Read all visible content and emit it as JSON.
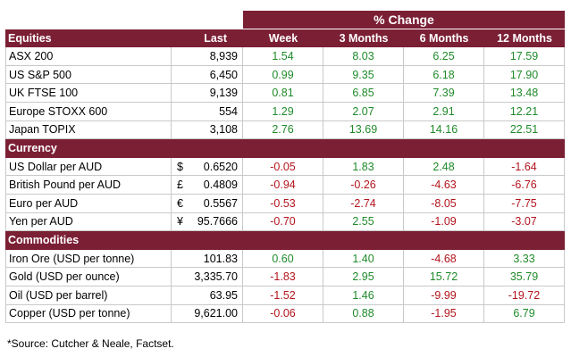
{
  "pct_change": "% Change",
  "headers": {
    "name": "Equities",
    "last": "Last",
    "week": "Week",
    "m3": "3 Months",
    "m6": "6 Months",
    "m12": "12 Months"
  },
  "equities": [
    {
      "name": "ASX 200",
      "last": "8,939",
      "week": "1.54",
      "m3": "8.03",
      "m6": "6.25",
      "m12": "17.59"
    },
    {
      "name": "US S&P 500",
      "last": "6,450",
      "week": "0.99",
      "m3": "9.35",
      "m6": "6.18",
      "m12": "17.90"
    },
    {
      "name": "UK FTSE 100",
      "last": "9,139",
      "week": "0.81",
      "m3": "6.85",
      "m6": "7.39",
      "m12": "13.48"
    },
    {
      "name": "Europe STOXX 600",
      "last": "554",
      "week": "1.29",
      "m3": "2.07",
      "m6": "2.91",
      "m12": "12.21"
    },
    {
      "name": "Japan TOPIX",
      "last": "3,108",
      "week": "2.76",
      "m3": "13.69",
      "m6": "14.16",
      "m12": "22.51"
    }
  ],
  "currency_title": "Currency",
  "currency": [
    {
      "name": "US Dollar per AUD",
      "sym": "$",
      "last": "0.6520",
      "week": "-0.05",
      "m3": "1.83",
      "m6": "2.48",
      "m12": "-1.64"
    },
    {
      "name": "British Pound per AUD",
      "sym": "£",
      "last": "0.4809",
      "week": "-0.94",
      "m3": "-0.26",
      "m6": "-4.63",
      "m12": "-6.76"
    },
    {
      "name": "Euro per AUD",
      "sym": "€",
      "last": "0.5567",
      "week": "-0.53",
      "m3": "-2.74",
      "m6": "-8.05",
      "m12": "-7.75"
    },
    {
      "name": "Yen per AUD",
      "sym": "¥",
      "last": "95.7666",
      "week": "-0.70",
      "m3": "2.55",
      "m6": "-1.09",
      "m12": "-3.07"
    }
  ],
  "commodities_title": "Commodities",
  "commodities": [
    {
      "name": "Iron Ore (USD per tonne)",
      "last": "101.83",
      "week": "0.60",
      "m3": "1.40",
      "m6": "-4.68",
      "m12": "3.33"
    },
    {
      "name": "Gold (USD per ounce)",
      "last": "3,335.70",
      "week": "-1.83",
      "m3": "2.95",
      "m6": "15.72",
      "m12": "35.79"
    },
    {
      "name": "Oil (USD per barrel)",
      "last": "63.95",
      "week": "-1.52",
      "m3": "1.46",
      "m6": "-9.99",
      "m12": "-19.72"
    },
    {
      "name": "Copper (USD per tonne)",
      "last": "9,621.00",
      "week": "-0.06",
      "m3": "0.88",
      "m6": "-1.95",
      "m12": "6.79"
    }
  ],
  "source": "*Source: Cutcher & Neale, Factset.",
  "colors": {
    "header": "#7b1f35",
    "positive": "#1f8a2a",
    "negative": "#b3141c"
  }
}
